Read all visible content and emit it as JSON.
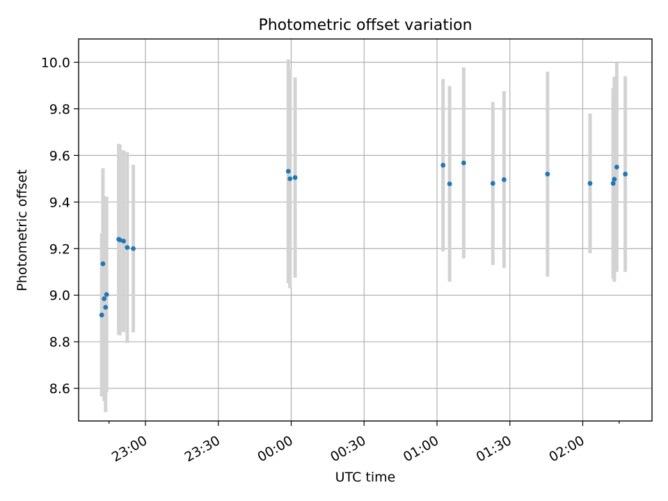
{
  "chart_data": {
    "type": "scatter",
    "title": "Photometric offset variation",
    "xlabel": "UTC time",
    "ylabel": "Photometric offset",
    "x_axis": {
      "ticks": [
        "22:45",
        "23:00",
        "23:30",
        "00:00",
        "00:30",
        "01:00",
        "01:30",
        "02:00",
        "02:15"
      ],
      "tick_labels": [
        "23:00",
        "23:30",
        "00:00",
        "00:30",
        "01:00",
        "01:30",
        "02:00"
      ],
      "xlim": [
        "22:32:30",
        "02:28:30"
      ]
    },
    "y_axis": {
      "ticks": [
        8.6,
        8.8,
        9.0,
        9.2,
        9.4,
        9.6,
        9.8,
        10.0
      ],
      "tick_labels": [
        "8.6",
        "8.8",
        "9.0",
        "9.2",
        "9.4",
        "9.6",
        "9.8",
        "10.0"
      ],
      "ylim": [
        8.46,
        10.1
      ]
    },
    "grid": true,
    "colors": {
      "marker": "#1f77b4",
      "errorbar": "#d3d3d3"
    },
    "points": [
      {
        "x": "22:42:00",
        "y": 8.915,
        "yerr": 0.35
      },
      {
        "x": "22:42:30",
        "y": 9.135,
        "yerr": 0.41
      },
      {
        "x": "22:43:00",
        "y": 8.985,
        "yerr": 0.44
      },
      {
        "x": "22:43:36",
        "y": 8.948,
        "yerr": 0.45
      },
      {
        "x": "22:44:00",
        "y": 9.003,
        "yerr": 0.42
      },
      {
        "x": "22:49:00",
        "y": 9.24,
        "yerr": 0.41
      },
      {
        "x": "22:49:30",
        "y": 9.237,
        "yerr": 0.41
      },
      {
        "x": "22:51:00",
        "y": 9.232,
        "yerr": 0.39
      },
      {
        "x": "22:52:30",
        "y": 9.205,
        "yerr": 0.41
      },
      {
        "x": "22:55:00",
        "y": 9.2,
        "yerr": 0.36
      },
      {
        "x": "23:58:48",
        "y": 9.532,
        "yerr": 0.48
      },
      {
        "x": "23:59:30",
        "y": 9.5,
        "yerr": 0.47
      },
      {
        "x": "00:01:36",
        "y": 9.505,
        "yerr": 0.43
      },
      {
        "x": "01:02:30",
        "y": 9.558,
        "yerr": 0.37
      },
      {
        "x": "01:05:12",
        "y": 9.478,
        "yerr": 0.42
      },
      {
        "x": "01:11:00",
        "y": 9.568,
        "yerr": 0.41
      },
      {
        "x": "01:23:00",
        "y": 9.48,
        "yerr": 0.35
      },
      {
        "x": "01:27:36",
        "y": 9.496,
        "yerr": 0.38
      },
      {
        "x": "01:45:30",
        "y": 9.52,
        "yerr": 0.44
      },
      {
        "x": "02:03:00",
        "y": 9.48,
        "yerr": 0.3
      },
      {
        "x": "02:12:30",
        "y": 9.48,
        "yerr": 0.41
      },
      {
        "x": "02:13:00",
        "y": 9.498,
        "yerr": 0.44
      },
      {
        "x": "02:14:00",
        "y": 9.55,
        "yerr": 0.45
      },
      {
        "x": "02:17:30",
        "y": 9.52,
        "yerr": 0.42
      }
    ]
  }
}
